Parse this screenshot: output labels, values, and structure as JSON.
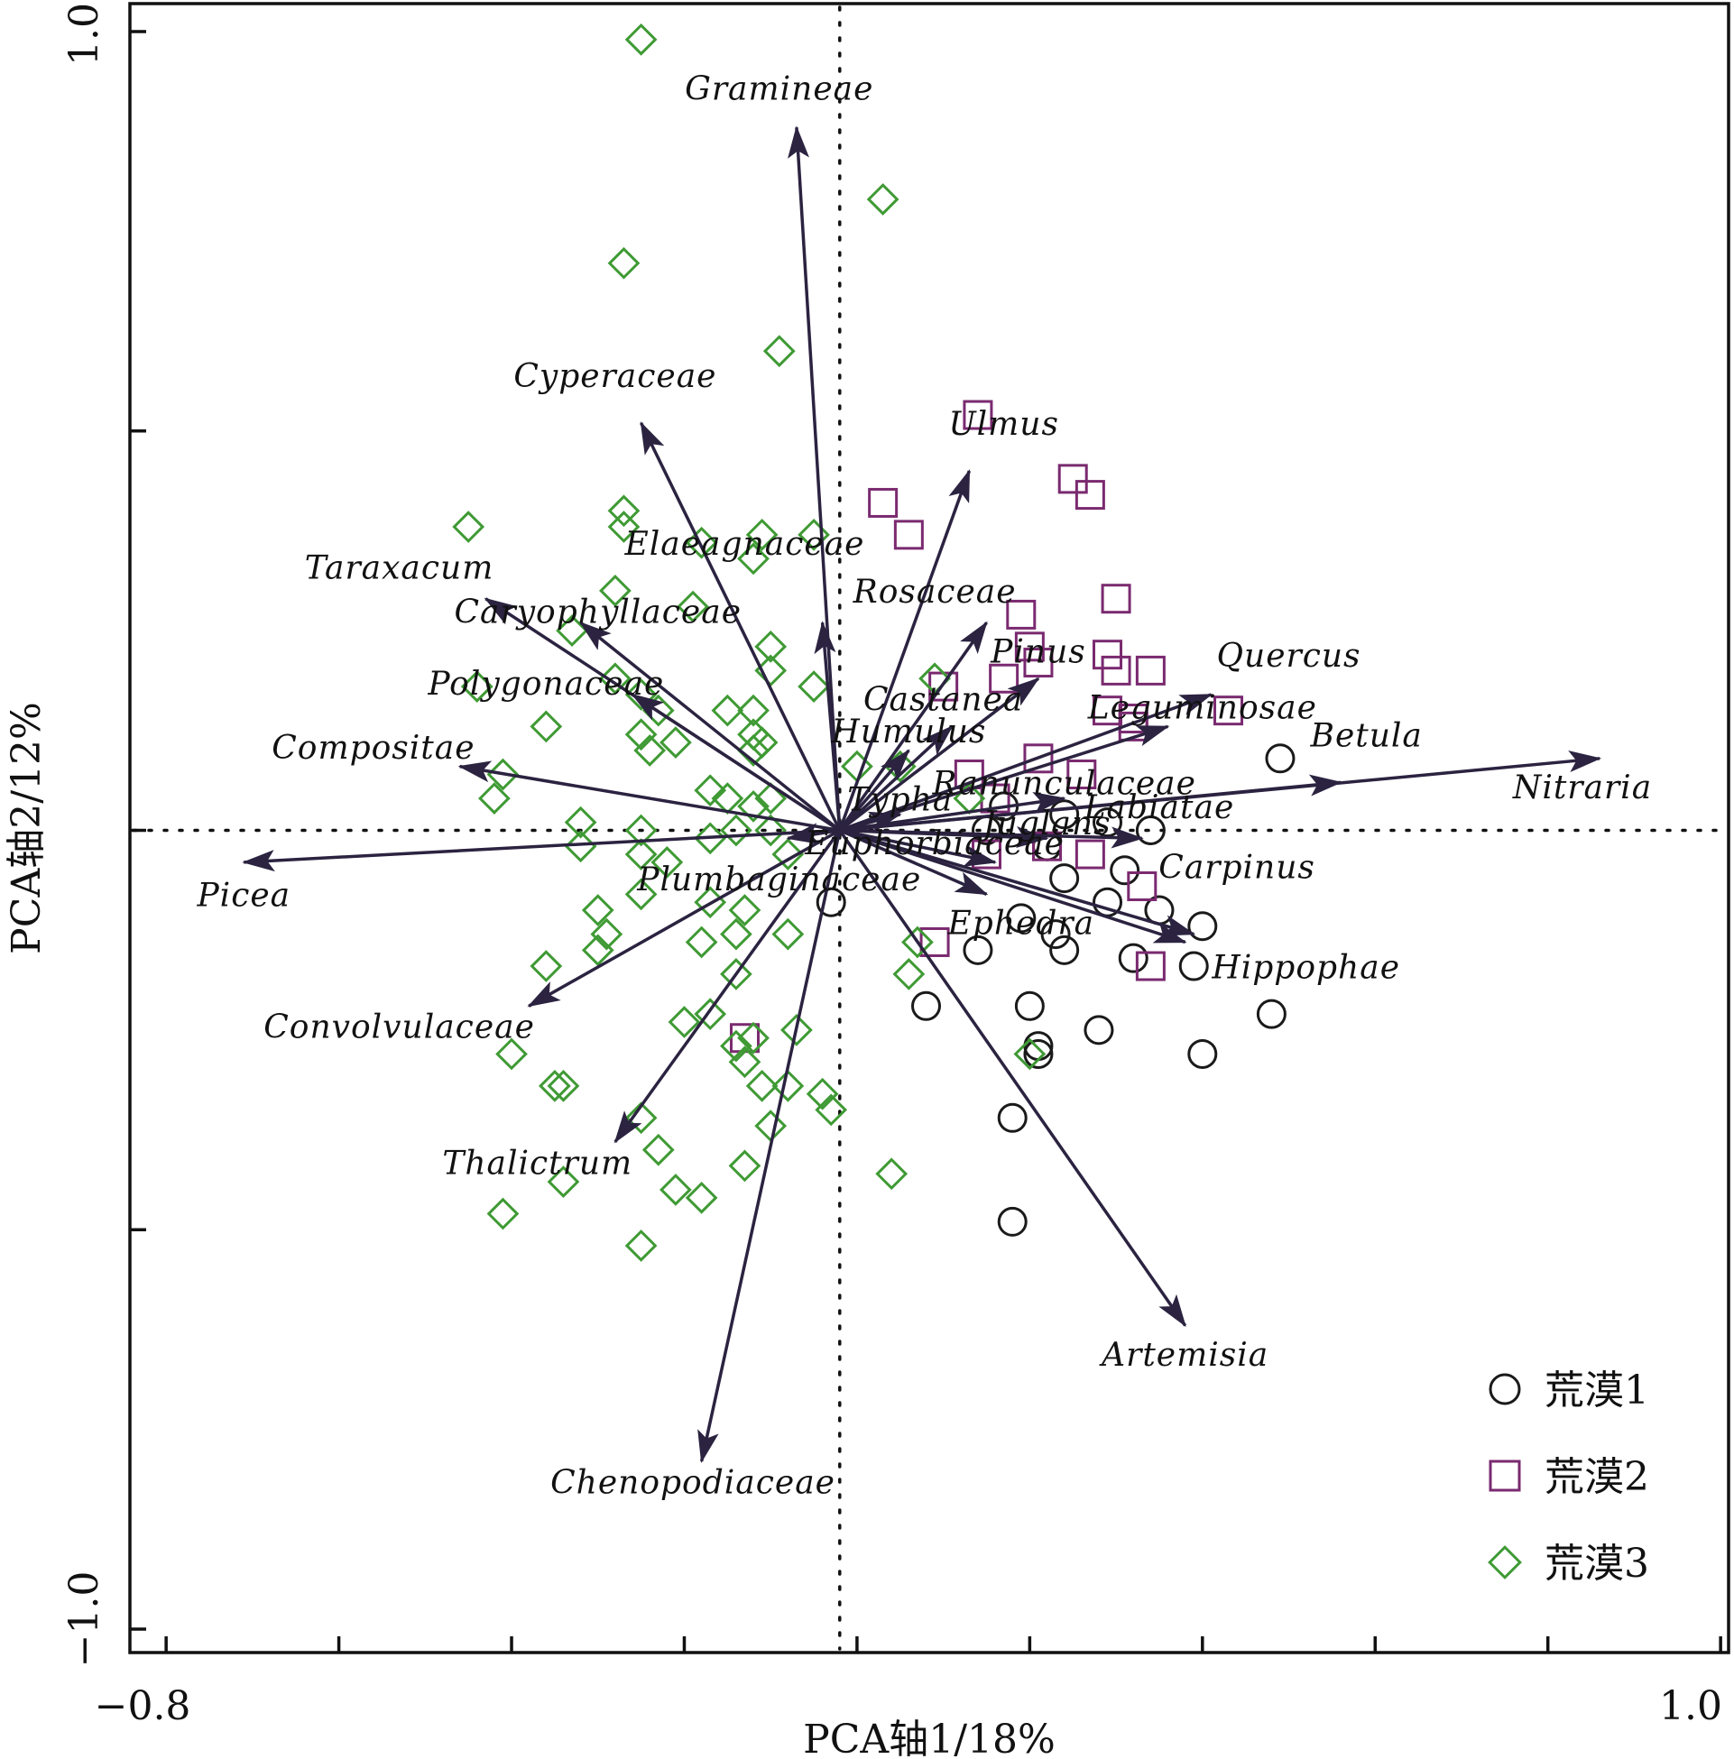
{
  "chart_data": {
    "type": "scatter",
    "subtype": "pca-biplot",
    "xlabel": "PCA轴1/18%",
    "ylabel": "PCA轴2/12%",
    "xlim": [
      -0.8,
      1.0
    ],
    "ylim": [
      -1.0,
      1.0
    ],
    "x_tick_labels": [
      {
        "value": -0.8,
        "label": "−0.8"
      },
      {
        "value": 1.0,
        "label": "1.0"
      }
    ],
    "y_tick_labels": [
      {
        "value": 1.0,
        "label": "1.0"
      },
      {
        "value": -1.0,
        "label": "−1.0"
      }
    ],
    "x_ticks": [
      -0.78,
      -0.58,
      -0.38,
      -0.18,
      0.02,
      0.22,
      0.42,
      0.62,
      0.82,
      1.02
    ],
    "y_ticks": [
      1.0,
      0.5,
      0.0,
      -0.5,
      -1.0
    ],
    "grid": false,
    "zero_lines": "dotted",
    "legend_position": "bottom-right",
    "colors": {
      "arrow": "#2b2340",
      "荒漠1": "#1a1a1a",
      "荒漠2": "#7a2a70",
      "荒漠3": "#3f9a34"
    },
    "legend": [
      {
        "label": "荒漠1",
        "marker": "circle"
      },
      {
        "label": "荒漠2",
        "marker": "square"
      },
      {
        "label": "荒漠3",
        "marker": "diamond"
      }
    ],
    "vectors": [
      {
        "name": "Gramineae",
        "x": -0.05,
        "y": 0.88,
        "lx": -0.07,
        "ly": 0.915
      },
      {
        "name": "Cyperaceae",
        "x": -0.23,
        "y": 0.51,
        "lx": -0.26,
        "ly": 0.555
      },
      {
        "name": "Ulmus",
        "x": 0.15,
        "y": 0.45,
        "lx": 0.19,
        "ly": 0.495
      },
      {
        "name": "Elaeagnaceae",
        "x": -0.02,
        "y": 0.26,
        "lx": -0.11,
        "ly": 0.345
      },
      {
        "name": "Rosaceae",
        "x": 0.17,
        "y": 0.26,
        "lx": 0.11,
        "ly": 0.285
      },
      {
        "name": "Taraxacum",
        "x": -0.41,
        "y": 0.29,
        "lx": -0.51,
        "ly": 0.315
      },
      {
        "name": "Caryophyllaceae",
        "x": -0.3,
        "y": 0.26,
        "lx": -0.28,
        "ly": 0.26
      },
      {
        "name": "Pinus",
        "x": 0.23,
        "y": 0.19,
        "lx": 0.23,
        "ly": 0.21
      },
      {
        "name": "Quercus",
        "x": 0.43,
        "y": 0.17,
        "lx": 0.52,
        "ly": 0.205
      },
      {
        "name": "Polygonaceae",
        "x": -0.24,
        "y": 0.17,
        "lx": -0.34,
        "ly": 0.17
      },
      {
        "name": "Castanea",
        "x": 0.13,
        "y": 0.13,
        "lx": 0.12,
        "ly": 0.15
      },
      {
        "name": "Humulus",
        "x": 0.08,
        "y": 0.1,
        "lx": 0.08,
        "ly": 0.11
      },
      {
        "name": "Leguminosae",
        "x": 0.38,
        "y": 0.13,
        "lx": 0.42,
        "ly": 0.14
      },
      {
        "name": "Compositae",
        "x": -0.44,
        "y": 0.08,
        "lx": -0.54,
        "ly": 0.09
      },
      {
        "name": "Betula",
        "x": 0.58,
        "y": 0.06,
        "lx": 0.61,
        "ly": 0.105
      },
      {
        "name": "Nitraria",
        "x": 0.88,
        "y": 0.09,
        "lx": 0.86,
        "ly": 0.04
      },
      {
        "name": "Ranunculaceae",
        "x": 0.26,
        "y": 0.04,
        "lx": 0.26,
        "ly": 0.045
      },
      {
        "name": "Labiatae",
        "x": 0.35,
        "y": -0.01,
        "lx": 0.37,
        "ly": 0.015
      },
      {
        "name": "Typha",
        "x": 0.07,
        "y": 0.02,
        "lx": 0.07,
        "ly": 0.025
      },
      {
        "name": "Juglans",
        "x": 0.24,
        "y": -0.01,
        "lx": 0.24,
        "ly": -0.005
      },
      {
        "name": "Euphorbiaceae",
        "x": 0.18,
        "y": -0.04,
        "lx": 0.11,
        "ly": -0.03
      },
      {
        "name": "Picea",
        "x": -0.69,
        "y": -0.04,
        "lx": -0.69,
        "ly": -0.095
      },
      {
        "name": "Plumbaginaceae",
        "x": -0.06,
        "y": -0.01,
        "lx": -0.07,
        "ly": -0.075
      },
      {
        "name": "Carpinus",
        "x": 0.41,
        "y": -0.13,
        "lx": 0.46,
        "ly": -0.06
      },
      {
        "name": "Ephedra",
        "x": 0.17,
        "y": -0.08,
        "lx": 0.21,
        "ly": -0.13
      },
      {
        "name": "Hippophae",
        "x": 0.4,
        "y": -0.14,
        "lx": 0.54,
        "ly": -0.185
      },
      {
        "name": "Convolvulaceae",
        "x": -0.36,
        "y": -0.22,
        "lx": -0.51,
        "ly": -0.26
      },
      {
        "name": "Thalictrum",
        "x": -0.26,
        "y": -0.39,
        "lx": -0.35,
        "ly": -0.43
      },
      {
        "name": "Artemisia",
        "x": 0.4,
        "y": -0.62,
        "lx": 0.4,
        "ly": -0.67
      },
      {
        "name": "Chenopodiaceae",
        "x": -0.16,
        "y": -0.79,
        "lx": -0.17,
        "ly": -0.83
      }
    ],
    "series": [
      {
        "name": "荒漠1",
        "marker": "circle",
        "points": [
          [
            0.51,
            0.09
          ],
          [
            0.17,
            0.0
          ],
          [
            0.19,
            0.03
          ],
          [
            0.26,
            0.02
          ],
          [
            0.31,
            0.01
          ],
          [
            0.24,
            -0.02
          ],
          [
            0.36,
            0.0
          ],
          [
            0.33,
            -0.05
          ],
          [
            0.26,
            -0.06
          ],
          [
            0.31,
            -0.09
          ],
          [
            0.37,
            -0.1
          ],
          [
            0.42,
            -0.12
          ],
          [
            0.21,
            -0.11
          ],
          [
            0.25,
            -0.13
          ],
          [
            0.34,
            -0.16
          ],
          [
            0.41,
            -0.17
          ],
          [
            0.16,
            -0.15
          ],
          [
            0.26,
            -0.15
          ],
          [
            0.22,
            -0.22
          ],
          [
            0.5,
            -0.23
          ],
          [
            0.1,
            -0.22
          ],
          [
            0.3,
            -0.25
          ],
          [
            0.23,
            -0.27
          ],
          [
            0.23,
            -0.28
          ],
          [
            0.42,
            -0.28
          ],
          [
            0.2,
            -0.36
          ],
          [
            0.2,
            -0.49
          ],
          [
            -0.01,
            -0.09
          ]
        ]
      },
      {
        "name": "荒漠2",
        "marker": "square",
        "points": [
          [
            0.16,
            0.52
          ],
          [
            0.27,
            0.44
          ],
          [
            0.29,
            0.42
          ],
          [
            0.05,
            0.41
          ],
          [
            0.08,
            0.37
          ],
          [
            0.32,
            0.29
          ],
          [
            0.21,
            0.27
          ],
          [
            0.22,
            0.23
          ],
          [
            0.31,
            0.22
          ],
          [
            0.23,
            0.21
          ],
          [
            0.19,
            0.19
          ],
          [
            0.32,
            0.2
          ],
          [
            0.36,
            0.2
          ],
          [
            0.12,
            0.18
          ],
          [
            0.31,
            0.15
          ],
          [
            0.34,
            0.14
          ],
          [
            0.45,
            0.15
          ],
          [
            0.34,
            0.13
          ],
          [
            0.23,
            0.09
          ],
          [
            0.15,
            0.07
          ],
          [
            0.28,
            0.07
          ],
          [
            0.18,
            0.04
          ],
          [
            0.24,
            -0.02
          ],
          [
            0.17,
            -0.03
          ],
          [
            0.29,
            -0.03
          ],
          [
            0.35,
            -0.07
          ],
          [
            0.11,
            -0.14
          ],
          [
            0.36,
            -0.17
          ],
          [
            -0.11,
            -0.26
          ]
        ]
      },
      {
        "name": "荒漠3",
        "marker": "diamond",
        "points": [
          [
            -0.23,
            0.99
          ],
          [
            0.05,
            0.79
          ],
          [
            -0.25,
            0.71
          ],
          [
            -0.07,
            0.6
          ],
          [
            -0.43,
            0.38
          ],
          [
            -0.25,
            0.4
          ],
          [
            -0.25,
            0.38
          ],
          [
            -0.09,
            0.37
          ],
          [
            -0.03,
            0.37
          ],
          [
            -0.16,
            0.36
          ],
          [
            -0.1,
            0.34
          ],
          [
            -0.26,
            0.3
          ],
          [
            -0.17,
            0.28
          ],
          [
            -0.31,
            0.25
          ],
          [
            -0.08,
            0.23
          ],
          [
            -0.08,
            0.2
          ],
          [
            -0.26,
            0.19
          ],
          [
            -0.42,
            0.18
          ],
          [
            -0.03,
            0.18
          ],
          [
            0.11,
            0.19
          ],
          [
            -0.23,
            0.17
          ],
          [
            -0.21,
            0.15
          ],
          [
            -0.13,
            0.15
          ],
          [
            -0.1,
            0.15
          ],
          [
            -0.34,
            0.13
          ],
          [
            -0.23,
            0.12
          ],
          [
            -0.19,
            0.11
          ],
          [
            -0.1,
            0.12
          ],
          [
            -0.09,
            0.11
          ],
          [
            -0.1,
            0.1
          ],
          [
            -0.22,
            0.1
          ],
          [
            -0.39,
            0.07
          ],
          [
            -0.4,
            0.04
          ],
          [
            -0.15,
            0.05
          ],
          [
            -0.13,
            0.04
          ],
          [
            -0.08,
            0.04
          ],
          [
            -0.1,
            0.03
          ],
          [
            0.02,
            0.08
          ],
          [
            0.07,
            0.08
          ],
          [
            0.15,
            0.04
          ],
          [
            -0.3,
            0.01
          ],
          [
            -0.23,
            0.0
          ],
          [
            -0.15,
            -0.01
          ],
          [
            -0.12,
            0.0
          ],
          [
            -0.08,
            0.0
          ],
          [
            -0.3,
            -0.02
          ],
          [
            -0.23,
            -0.03
          ],
          [
            -0.2,
            -0.04
          ],
          [
            -0.06,
            -0.03
          ],
          [
            -0.23,
            -0.08
          ],
          [
            -0.15,
            -0.09
          ],
          [
            -0.11,
            -0.1
          ],
          [
            -0.28,
            -0.1
          ],
          [
            -0.27,
            -0.13
          ],
          [
            -0.16,
            -0.14
          ],
          [
            -0.12,
            -0.13
          ],
          [
            -0.28,
            -0.15
          ],
          [
            -0.06,
            -0.13
          ],
          [
            0.09,
            -0.14
          ],
          [
            -0.34,
            -0.17
          ],
          [
            -0.12,
            -0.18
          ],
          [
            0.08,
            -0.18
          ],
          [
            -0.15,
            -0.23
          ],
          [
            -0.18,
            -0.24
          ],
          [
            -0.12,
            -0.27
          ],
          [
            -0.1,
            -0.26
          ],
          [
            -0.05,
            -0.25
          ],
          [
            -0.38,
            -0.28
          ],
          [
            -0.11,
            -0.29
          ],
          [
            -0.33,
            -0.32
          ],
          [
            -0.32,
            -0.32
          ],
          [
            -0.09,
            -0.32
          ],
          [
            -0.06,
            -0.32
          ],
          [
            -0.02,
            -0.33
          ],
          [
            -0.01,
            -0.35
          ],
          [
            -0.23,
            -0.36
          ],
          [
            -0.08,
            -0.37
          ],
          [
            -0.21,
            -0.4
          ],
          [
            -0.11,
            -0.42
          ],
          [
            0.06,
            -0.43
          ],
          [
            -0.32,
            -0.44
          ],
          [
            -0.19,
            -0.45
          ],
          [
            -0.16,
            -0.46
          ],
          [
            -0.39,
            -0.48
          ],
          [
            -0.23,
            -0.52
          ],
          [
            0.22,
            -0.28
          ]
        ]
      }
    ]
  }
}
